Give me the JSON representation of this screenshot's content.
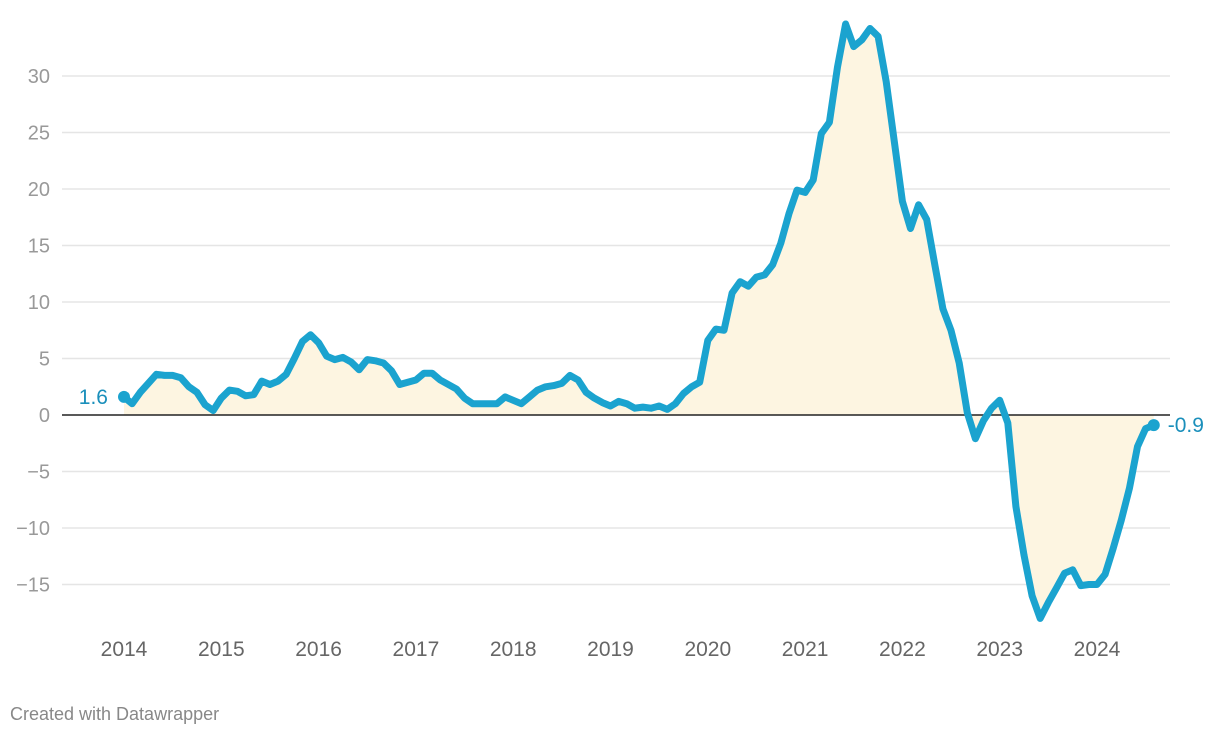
{
  "chart_data": {
    "type": "area",
    "title": "",
    "xlabel": "",
    "ylabel": "",
    "ylim": [
      -18.5,
      35
    ],
    "yticks": [
      30,
      25,
      20,
      15,
      10,
      5,
      0,
      -5,
      -10,
      -15
    ],
    "xticks": [
      "2014",
      "2015",
      "2016",
      "2017",
      "2018",
      "2019",
      "2020",
      "2021",
      "2022",
      "2023",
      "2024"
    ],
    "grid": true,
    "x_start": "2014-01",
    "x_end": "2024-08",
    "frequency": "monthly",
    "line_color": "#1ba3cf",
    "fill_color": "#fdf5e1",
    "label_color": "#1a8fbb",
    "start_label": "1.6",
    "end_label": "-0.9",
    "values": [
      1.6,
      1.0,
      2.0,
      2.8,
      3.6,
      3.5,
      3.5,
      3.3,
      2.5,
      2.0,
      0.9,
      0.4,
      1.5,
      2.2,
      2.1,
      1.7,
      1.8,
      3.0,
      2.7,
      3.0,
      3.6,
      5.0,
      6.5,
      7.1,
      6.4,
      5.2,
      4.9,
      5.1,
      4.7,
      4.0,
      4.9,
      4.8,
      4.6,
      3.9,
      2.7,
      2.9,
      3.1,
      3.7,
      3.7,
      3.1,
      2.7,
      2.3,
      1.5,
      1.0,
      1.0,
      1.0,
      1.0,
      1.6,
      1.3,
      1.0,
      1.6,
      2.2,
      2.5,
      2.6,
      2.8,
      3.5,
      3.1,
      2.0,
      1.5,
      1.1,
      0.8,
      1.2,
      1.0,
      0.6,
      0.7,
      0.6,
      0.8,
      0.5,
      1.0,
      1.9,
      2.5,
      2.9,
      6.6,
      7.6,
      7.5,
      10.8,
      11.8,
      11.4,
      12.2,
      12.4,
      13.3,
      15.2,
      17.8,
      19.9,
      19.7,
      20.8,
      24.9,
      25.9,
      30.8,
      34.6,
      32.6,
      33.2,
      34.2,
      33.5,
      29.5,
      24.2,
      18.9,
      16.5,
      18.6,
      17.3,
      13.3,
      9.4,
      7.5,
      4.6,
      0.2,
      -2.1,
      -0.5,
      0.6,
      1.3,
      -0.7,
      -8.1,
      -12.4,
      -16.0,
      -18.0,
      -16.6,
      -15.3,
      -14.0,
      -13.7,
      -15.1,
      -15.0,
      -15.0,
      -14.1,
      -11.8,
      -9.3,
      -6.5,
      -2.8,
      -1.2,
      -0.9
    ]
  },
  "footer": "Created with Datawrapper"
}
